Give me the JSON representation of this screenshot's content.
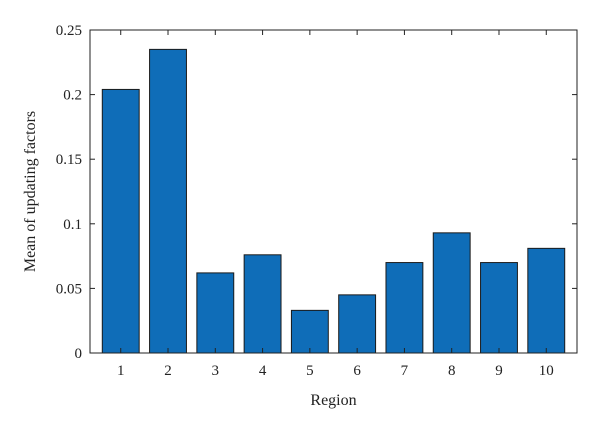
{
  "chart_data": {
    "type": "bar",
    "title": "",
    "xlabel": "Region",
    "ylabel": "Mean of updating factors",
    "categories": [
      "1",
      "2",
      "3",
      "4",
      "5",
      "6",
      "7",
      "8",
      "9",
      "10"
    ],
    "values": [
      0.204,
      0.235,
      0.062,
      0.076,
      0.033,
      0.045,
      0.07,
      0.093,
      0.07,
      0.081
    ],
    "ylim": [
      0,
      0.25
    ],
    "yticks": [
      {
        "value": 0,
        "label": "0"
      },
      {
        "value": 0.05,
        "label": "0.05"
      },
      {
        "value": 0.1,
        "label": "0.1"
      },
      {
        "value": 0.15,
        "label": "0.15"
      },
      {
        "value": 0.2,
        "label": "0.2"
      },
      {
        "value": 0.25,
        "label": "0.25"
      }
    ],
    "bar_color": "#0f6db8",
    "grid": false,
    "box": true
  }
}
